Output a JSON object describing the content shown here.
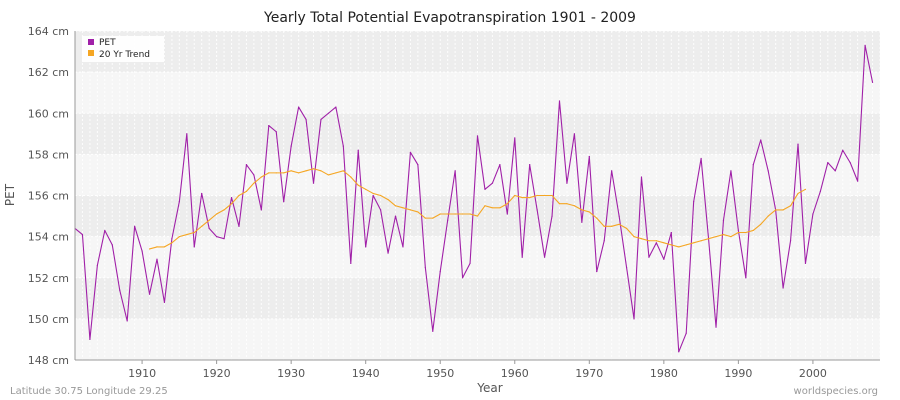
{
  "chart_data": {
    "type": "line",
    "title": "Yearly Total Potential Evapotranspiration 1901 - 2009",
    "xlabel": "Year",
    "ylabel": "PET",
    "xlim": [
      1901,
      2009
    ],
    "ylim": [
      148,
      164
    ],
    "y_unit": "cm",
    "x_ticks": [
      1910,
      1920,
      1930,
      1940,
      1950,
      1960,
      1970,
      1980,
      1990,
      2000
    ],
    "y_ticks": [
      148,
      150,
      152,
      154,
      156,
      158,
      160,
      162,
      164
    ],
    "y_tick_labels": [
      "148 cm",
      "150 cm",
      "152 cm",
      "154 cm",
      "156 cm",
      "158 cm",
      "160 cm",
      "162 cm",
      "164 cm"
    ],
    "grid": true,
    "legend_position": "top-left",
    "series": [
      {
        "name": "PET",
        "color": "#a020a8",
        "x_start": 1901,
        "values": [
          154.4,
          154.1,
          149.0,
          152.6,
          154.3,
          153.6,
          151.4,
          149.9,
          154.5,
          153.3,
          151.2,
          152.9,
          150.8,
          153.9,
          155.7,
          159.0,
          153.5,
          156.1,
          154.4,
          154.0,
          153.9,
          155.9,
          154.5,
          157.5,
          157.0,
          155.3,
          159.4,
          159.1,
          155.7,
          158.4,
          160.3,
          159.7,
          156.6,
          159.7,
          160.0,
          160.3,
          158.4,
          152.7,
          158.2,
          153.5,
          156.0,
          155.3,
          153.2,
          155.0,
          153.5,
          158.1,
          157.5,
          152.5,
          149.4,
          152.3,
          154.8,
          157.2,
          152.0,
          152.7,
          158.9,
          156.3,
          156.6,
          157.5,
          155.1,
          158.8,
          153.0,
          157.5,
          155.3,
          153.0,
          155.0,
          160.6,
          156.6,
          159.0,
          154.7,
          157.9,
          152.3,
          153.8,
          157.2,
          155.0,
          152.5,
          150.0,
          156.9,
          153.0,
          153.7,
          152.9,
          154.2,
          148.4,
          149.3,
          155.7,
          157.8,
          153.9,
          149.6,
          154.8,
          157.2,
          154.3,
          152.0,
          157.5,
          158.7,
          157.2,
          155.3,
          151.5,
          153.8,
          158.5,
          152.7,
          155.1,
          156.2,
          157.6,
          157.2,
          158.2,
          157.6,
          156.7,
          163.3,
          161.5
        ]
      },
      {
        "name": "20 Yr Trend",
        "color": "#f5a623",
        "x_start": 1911,
        "values": [
          153.4,
          153.5,
          153.5,
          153.7,
          154.0,
          154.1,
          154.2,
          154.5,
          154.8,
          155.1,
          155.3,
          155.6,
          156.0,
          156.2,
          156.6,
          156.9,
          157.1,
          157.1,
          157.1,
          157.2,
          157.1,
          157.2,
          157.3,
          157.2,
          157.0,
          157.1,
          157.2,
          156.9,
          156.5,
          156.3,
          156.1,
          156.0,
          155.8,
          155.5,
          155.4,
          155.3,
          155.2,
          154.9,
          154.9,
          155.1,
          155.1,
          155.1,
          155.1,
          155.1,
          155.0,
          155.5,
          155.4,
          155.4,
          155.6,
          156.0,
          155.9,
          155.9,
          156.0,
          156.0,
          156.0,
          155.6,
          155.6,
          155.5,
          155.3,
          155.2,
          154.9,
          154.5,
          154.5,
          154.6,
          154.4,
          154.0,
          153.9,
          153.8,
          153.8,
          153.7,
          153.6,
          153.5,
          153.6,
          153.7,
          153.8,
          153.9,
          154.0,
          154.1,
          154.0,
          154.2,
          154.2,
          154.3,
          154.6,
          155.0,
          155.3,
          155.3,
          155.5,
          156.1,
          156.3
        ]
      }
    ]
  },
  "footer": {
    "left": "Latitude 30.75 Longitude 29.25",
    "right": "worldspecies.org"
  }
}
